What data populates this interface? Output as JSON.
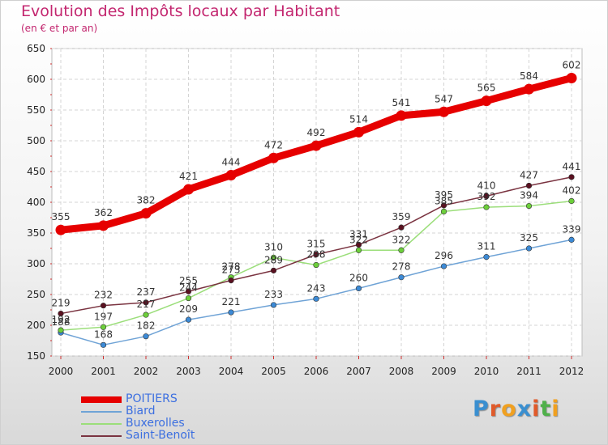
{
  "title": "Evolution des Impôts locaux par Habitant",
  "subtitle": "(en € et par an)",
  "logo": {
    "letters": [
      "P",
      "r",
      "o",
      "x",
      "i",
      "t",
      "i"
    ],
    "colors": [
      "#3a8fd0",
      "#e05a2a",
      "#f0a020",
      "#3a8fd0",
      "#e05a2a",
      "#4fb04a",
      "#f0a020"
    ]
  },
  "chart_data": {
    "type": "line",
    "title": "Evolution des Impôts locaux par Habitant",
    "subtitle": "(en € et par an)",
    "x": [
      "2000",
      "2001",
      "2002",
      "2003",
      "2004",
      "2005",
      "2006",
      "2007",
      "2008",
      "2009",
      "2010",
      "2011",
      "2012"
    ],
    "ylim": [
      150,
      650
    ],
    "yticks": [
      "150",
      "200",
      "250",
      "300",
      "350",
      "400",
      "450",
      "500",
      "550",
      "600",
      "650"
    ],
    "grid": true,
    "legend_position": "bottom-left",
    "series": [
      {
        "name": "POITIERS",
        "color": "#e60000",
        "values": [
          355,
          362,
          382,
          421,
          444,
          472,
          492,
          514,
          541,
          547,
          565,
          584,
          602
        ],
        "labels": [
          "355",
          "362",
          "382",
          "421",
          "444",
          "472",
          "492",
          "514",
          "541",
          "547",
          "565",
          "584",
          "602"
        ]
      },
      {
        "name": "Biard",
        "color": "#6fa3d6",
        "point_color": "#3c8ad6",
        "values": [
          188,
          168,
          182,
          209,
          221,
          233,
          243,
          260,
          278,
          296,
          311,
          325,
          339
        ],
        "labels": [
          "188",
          "168",
          "182",
          "209",
          "221",
          "233",
          "243",
          "260",
          "278",
          "296",
          "311",
          "325",
          "339"
        ]
      },
      {
        "name": "Buxerolles",
        "color": "#9bde7a",
        "point_color": "#6ccf3a",
        "values": [
          192,
          197,
          217,
          244,
          278,
          310,
          298,
          322,
          322,
          385,
          392,
          394,
          402
        ],
        "labels": [
          "192",
          "197",
          "217",
          "244",
          "278",
          "310",
          "298",
          "322",
          "322",
          "385",
          "392",
          "394",
          "402"
        ]
      },
      {
        "name": "Saint-Benoît",
        "color": "#7a3340",
        "point_color": "#5a1020",
        "values": [
          219,
          232,
          237,
          255,
          273,
          289,
          315,
          331,
          359,
          395,
          410,
          427,
          441
        ],
        "labels": [
          "219",
          "232",
          "237",
          "255",
          "273",
          "289",
          "315",
          "331",
          "359",
          "395",
          "410",
          "427",
          "441"
        ]
      }
    ]
  }
}
